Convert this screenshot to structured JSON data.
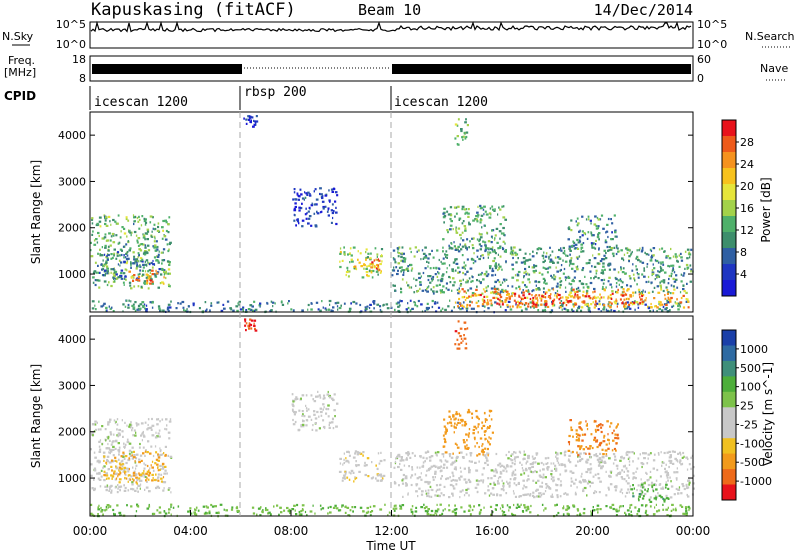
{
  "header": {
    "station": "Kapuskasing (fitACF)",
    "beam": "Beam 10",
    "date": "14/Dec/2014"
  },
  "noise_panel": {
    "left_label": "N.Sky",
    "right_label": "N.Search",
    "left_ticks": [
      "10^5",
      "10^0"
    ],
    "right_ticks": [
      "10^5",
      "10^0"
    ]
  },
  "freq_panel": {
    "left_label_1": "Freq.",
    "left_label_2": "[MHz]",
    "right_label": "Nave",
    "left_ticks": [
      "18",
      "8"
    ],
    "right_ticks": [
      "60",
      "0"
    ]
  },
  "cpid_panel": {
    "label": "CPID",
    "segments": [
      {
        "name": "icescan 1200",
        "start_h": 0,
        "end_h": 6
      },
      {
        "name": "rbsp 200",
        "start_h": 6,
        "end_h": 12
      },
      {
        "name": "icescan 1200",
        "start_h": 12,
        "end_h": 24
      }
    ]
  },
  "time_axis": {
    "label": "Time UT",
    "ticks": [
      "00:00",
      "04:00",
      "08:00",
      "12:00",
      "16:00",
      "20:00",
      "00:00"
    ]
  },
  "power_colorbar": {
    "label": "Power [dB]",
    "ticks": [
      "28",
      "24",
      "20",
      "16",
      "12",
      "8",
      "4"
    ],
    "colors": [
      "#e8121b",
      "#ee5a1a",
      "#f5921e",
      "#f7c21d",
      "#e6e53a",
      "#a3d24a",
      "#4fb06a",
      "#3d8e6c",
      "#2f5fa3",
      "#1f36c2",
      "#1a1ad6"
    ]
  },
  "velocity_colorbar": {
    "label": "Velocity [m s^-1]",
    "ticks": [
      "1000",
      "500",
      "100",
      "25",
      "-25",
      "-100",
      "-500",
      "-1000"
    ],
    "colors": [
      "#1a3fa8",
      "#2e6aa2",
      "#3f8f7a",
      "#4dae3a",
      "#7dc24a",
      "#c8c8c8",
      "#c8c8c8",
      "#f0c020",
      "#f29a1b",
      "#ee6a1a",
      "#e8121b"
    ]
  },
  "chart_data": [
    {
      "type": "heatmap",
      "panel": "power",
      "ylabel": "Slant Range [km]",
      "xlabel": "Time UT",
      "ylim": [
        180,
        4500
      ],
      "yticks": [
        1000,
        2000,
        3000,
        4000
      ],
      "xlim": [
        0,
        24
      ],
      "xticks": [
        0,
        4,
        8,
        12,
        16,
        20,
        24
      ],
      "regions": [
        {
          "t0": 0.0,
          "t1": 3.2,
          "r0": 700,
          "r1": 2300,
          "v": 14
        },
        {
          "t0": 0.2,
          "t1": 2.8,
          "r0": 900,
          "r1": 1500,
          "v": 9
        },
        {
          "t0": 1.5,
          "t1": 3.0,
          "r0": 800,
          "r1": 1100,
          "v": 26
        },
        {
          "t0": 0.0,
          "t1": 24.0,
          "r0": 200,
          "r1": 450,
          "v": 10
        },
        {
          "t0": 6.1,
          "t1": 6.6,
          "r0": 4200,
          "r1": 4450,
          "v": 4
        },
        {
          "t0": 8.0,
          "t1": 9.8,
          "r0": 2050,
          "r1": 2900,
          "v": 5
        },
        {
          "t0": 9.9,
          "t1": 11.7,
          "r0": 950,
          "r1": 1600,
          "v": 17
        },
        {
          "t0": 10.5,
          "t1": 11.5,
          "r0": 1100,
          "r1": 1350,
          "v": 27
        },
        {
          "t0": 12.0,
          "t1": 24.0,
          "r0": 600,
          "r1": 1600,
          "v": 12
        },
        {
          "t0": 14.5,
          "t1": 23.8,
          "r0": 300,
          "r1": 700,
          "v": 24
        },
        {
          "t0": 15.5,
          "t1": 22.0,
          "r0": 350,
          "r1": 600,
          "v": 30
        },
        {
          "t0": 14.0,
          "t1": 16.5,
          "r0": 1500,
          "r1": 2500,
          "v": 13
        },
        {
          "t0": 19.0,
          "t1": 21.0,
          "r0": 1500,
          "r1": 2300,
          "v": 11
        },
        {
          "t0": 14.5,
          "t1": 15.0,
          "r0": 3800,
          "r1": 4450,
          "v": 14
        }
      ]
    },
    {
      "type": "heatmap",
      "panel": "velocity",
      "ylabel": "Slant Range [km]",
      "xlabel": "Time UT",
      "ylim": [
        180,
        4500
      ],
      "yticks": [
        1000,
        2000,
        3000,
        4000
      ],
      "xlim": [
        0,
        24
      ],
      "xticks": [
        0,
        4,
        8,
        12,
        16,
        20,
        24
      ],
      "regions": [
        {
          "t0": 0.0,
          "t1": 3.2,
          "r0": 700,
          "r1": 2300,
          "v": 0
        },
        {
          "t0": 0.5,
          "t1": 3.0,
          "r0": 900,
          "r1": 1600,
          "v": -150
        },
        {
          "t0": 0.0,
          "t1": 24.0,
          "r0": 200,
          "r1": 450,
          "v": 60
        },
        {
          "t0": 6.1,
          "t1": 6.6,
          "r0": 4200,
          "r1": 4450,
          "v": -800
        },
        {
          "t0": 8.0,
          "t1": 9.8,
          "r0": 2050,
          "r1": 2900,
          "v": 0
        },
        {
          "t0": 9.9,
          "t1": 11.7,
          "r0": 950,
          "r1": 1600,
          "v": -20
        },
        {
          "t0": 12.0,
          "t1": 24.0,
          "r0": 600,
          "r1": 1600,
          "v": 0
        },
        {
          "t0": 14.0,
          "t1": 16.0,
          "r0": 1500,
          "r1": 2500,
          "v": -300
        },
        {
          "t0": 19.0,
          "t1": 21.0,
          "r0": 1500,
          "r1": 2300,
          "v": -400
        },
        {
          "t0": 14.5,
          "t1": 15.0,
          "r0": 3800,
          "r1": 4450,
          "v": -600
        },
        {
          "t0": 21.5,
          "t1": 23.0,
          "r0": 500,
          "r1": 900,
          "v": 150
        }
      ]
    }
  ]
}
